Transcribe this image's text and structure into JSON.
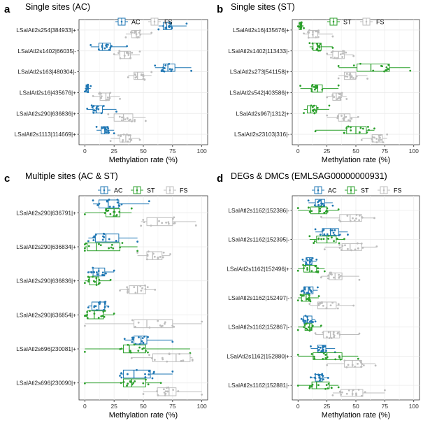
{
  "colors": {
    "AC": "#1f77b4",
    "ST": "#2ca02c",
    "FS": "#bdbdbd"
  },
  "chart_data": [
    {
      "label": "a",
      "title": "Single sites (AC)",
      "type": "boxplot",
      "xlabel": "Methylation rate (%)",
      "xlim": [
        -5,
        105
      ],
      "xticks": [
        "0",
        "25",
        "50",
        "75",
        "100"
      ],
      "legend": [
        "AC",
        "FS"
      ],
      "categories": [
        "LSalAtl2s254|384933|+",
        "LSalAtl2s1402|66035|-",
        "LSalAtl2s163|480304|-",
        "LSalAtl2s16|435676|+",
        "LSalAtl2s290|636836|+",
        "LSalAtl2s1113|114669|+"
      ],
      "series": [
        {
          "name": "AC",
          "boxes": [
            [
              63,
              67,
              70,
              74,
              87
            ],
            [
              5,
              12,
              15,
              22,
              36
            ],
            [
              60,
              67,
              71,
              77,
              91
            ],
            [
              0,
              1,
              2,
              3,
              5
            ],
            [
              2,
              7,
              10,
              15,
              27
            ],
            [
              10,
              14,
              17,
              20,
              25
            ]
          ]
        },
        {
          "name": "FS",
          "boxes": [
            [
              35,
              40,
              44,
              47,
              57
            ],
            [
              25,
              30,
              34,
              39,
              47
            ],
            [
              37,
              42,
              45,
              50,
              57
            ],
            [
              7,
              13,
              18,
              21,
              30
            ],
            [
              20,
              25,
              33,
              41,
              52
            ],
            [
              22,
              30,
              35,
              39,
              47
            ]
          ]
        }
      ]
    },
    {
      "label": "b",
      "title": "Single sites (ST)",
      "type": "boxplot",
      "xlabel": "Methylation rate (%)",
      "xlim": [
        -5,
        105
      ],
      "xticks": [
        "0",
        "25",
        "50",
        "75",
        "100"
      ],
      "legend": [
        "ST",
        "FS"
      ],
      "categories": [
        "LSalAtl2s16|435676|+",
        "LSalAtl2s1402|113433|-",
        "LSalAtl2s273|541158|+",
        "LSalAtl2s542|403586|+",
        "LSalAtl2s967|1312|+",
        "LSalAtl2s23103|316|-"
      ],
      "series": [
        {
          "name": "ST",
          "boxes": [
            [
              0,
              1,
              2,
              3,
              5
            ],
            [
              10,
              13,
              17,
              20,
              30
            ],
            [
              35,
              51,
              63,
              79,
              97
            ],
            [
              2,
              12,
              17,
              21,
              35
            ],
            [
              5,
              8,
              11,
              16,
              27
            ],
            [
              15,
              42,
              50,
              59,
              66
            ]
          ]
        },
        {
          "name": "FS",
          "boxes": [
            [
              5,
              9,
              13,
              17,
              30
            ],
            [
              25,
              30,
              35,
              40,
              48
            ],
            [
              35,
              40,
              45,
              50,
              60
            ],
            [
              25,
              30,
              33,
              37,
              42
            ],
            [
              25,
              35,
              40,
              45,
              52
            ],
            [
              55,
              64,
              70,
              73,
              77
            ]
          ]
        }
      ]
    },
    {
      "label": "c",
      "title": "Multiple sites (AC & ST)",
      "type": "boxplot",
      "xlabel": "Methylation rate (%)",
      "xlim": [
        -5,
        105
      ],
      "xticks": [
        "0",
        "25",
        "50",
        "75",
        "100"
      ],
      "legend": [
        "AC",
        "ST",
        "FS"
      ],
      "categories": [
        "LSalAtl2s290|636791|+",
        "LSalAtl2s290|636834|+",
        "LSalAtl2s290|636836|+",
        "LSalAtl2s290|636854|+",
        "LSalAtl2s696|230081|+",
        "LSalAtl2s696|230090|+"
      ],
      "series": [
        {
          "name": "AC",
          "boxes": [
            [
              7,
              12,
              20,
              29,
              55
            ],
            [
              3,
              9,
              18,
              29,
              45
            ],
            [
              3,
              7,
              12,
              17,
              25
            ],
            [
              3,
              6,
              12,
              17,
              20
            ],
            [
              34,
              42,
              48,
              53,
              75
            ],
            [
              30,
              33,
              42,
              56,
              75
            ]
          ]
        },
        {
          "name": "ST",
          "boxes": [
            [
              0,
              18,
              25,
              30,
              40
            ],
            [
              0,
              2,
              10,
              30,
              45
            ],
            [
              0,
              4,
              10,
              12,
              22
            ],
            [
              0,
              2,
              8,
              16,
              25
            ],
            [
              0,
              33,
              38,
              52,
              90
            ],
            [
              0,
              33,
              40,
              52,
              65
            ]
          ]
        },
        {
          "name": "FS",
          "boxes": [
            [
              48,
              53,
              62,
              75,
              95
            ],
            [
              45,
              53,
              58,
              66,
              73
            ],
            [
              30,
              38,
              45,
              52,
              60
            ],
            [
              0,
              42,
              53,
              75,
              100
            ],
            [
              40,
              58,
              78,
              90,
              92
            ],
            [
              50,
              62,
              72,
              78,
              100
            ]
          ]
        }
      ]
    },
    {
      "label": "d",
      "title": "DEGs & DMCs (EMLSAG00000000931)",
      "type": "boxplot",
      "xlabel": "Methylation rate (%)",
      "xlim": [
        -5,
        105
      ],
      "xticks": [
        "0",
        "25",
        "50",
        "75",
        "100"
      ],
      "legend": [
        "AC",
        "ST",
        "FS"
      ],
      "categories": [
        "LSalAtl2s1162|152386|-",
        "LSalAtl2s1162|152395|-",
        "LSalAtl2s1162|152496|+",
        "LSalAtl2s1162|152497|-",
        "LSalAtl2s1162|152867|-",
        "LSalAtl2s1162|152880|+",
        "LSalAtl2s1162|152881|-"
      ],
      "series": [
        {
          "name": "AC",
          "boxes": [
            [
              9,
              15,
              20,
              23,
              30
            ],
            [
              15,
              21,
              28,
              35,
              43
            ],
            [
              4,
              7,
              10,
              12,
              16
            ],
            [
              3,
              5,
              9,
              13,
              17
            ],
            [
              3,
              5,
              8,
              12,
              15
            ],
            [
              11,
              17,
              21,
              24,
              32
            ],
            [
              11,
              15,
              19,
              21,
              26
            ]
          ]
        },
        {
          "name": "ST",
          "boxes": [
            [
              0,
              11,
              18,
              25,
              35
            ],
            [
              10,
              16,
              25,
              33,
              40
            ],
            [
              0,
              5,
              10,
              16,
              23
            ],
            [
              0,
              3,
              7,
              10,
              18
            ],
            [
              0,
              6,
              10,
              12,
              20
            ],
            [
              0,
              13,
              25,
              38,
              52
            ],
            [
              0,
              12,
              16,
              27,
              35
            ]
          ]
        },
        {
          "name": "FS",
          "boxes": [
            [
              20,
              36,
              45,
              55,
              66
            ],
            [
              23,
              38,
              45,
              55,
              68
            ],
            [
              20,
              27,
              32,
              38,
              53
            ],
            [
              10,
              17,
              25,
              33,
              48
            ],
            [
              15,
              22,
              28,
              36,
              53
            ],
            [
              25,
              40,
              47,
              55,
              67
            ],
            [
              30,
              37,
              47,
              56,
              75
            ]
          ]
        }
      ]
    }
  ]
}
